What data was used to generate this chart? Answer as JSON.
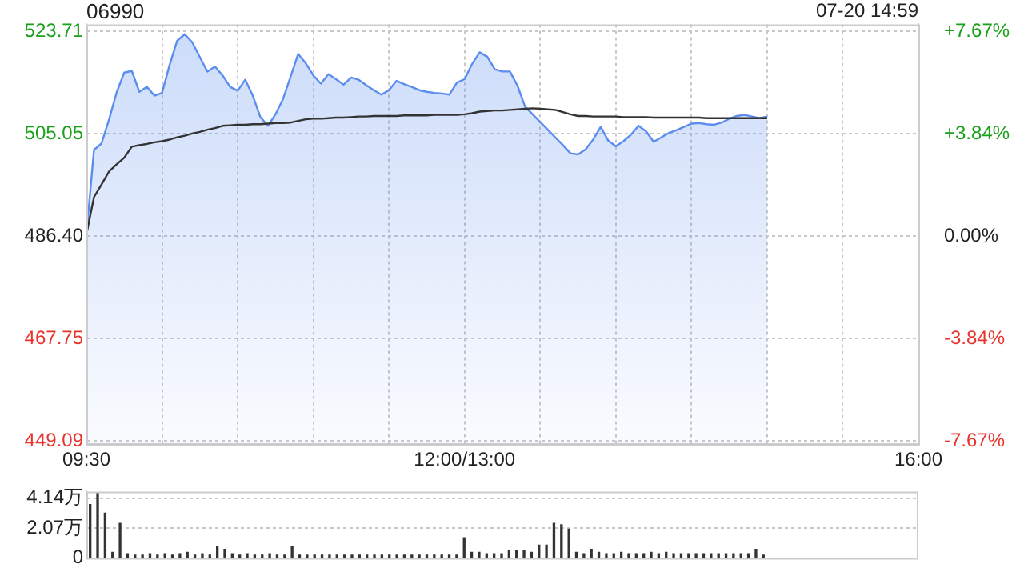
{
  "chart_data": [
    {
      "type": "line",
      "title": "06990",
      "annotations": [
        "07-20 14:59"
      ],
      "categories": [
        "09:30",
        null,
        null,
        null,
        null,
        null,
        null,
        null,
        null,
        null,
        null,
        null,
        null,
        null,
        null,
        null,
        null,
        null,
        null,
        null,
        null,
        null,
        null,
        null,
        null,
        null,
        null,
        null,
        null,
        null,
        null,
        null,
        null,
        null,
        null,
        null,
        null,
        null,
        null,
        null,
        null,
        null,
        null,
        null,
        null,
        null,
        null,
        null,
        null,
        null,
        "12:00/13:00",
        null,
        null,
        null,
        null,
        null,
        null,
        null,
        null,
        null,
        null,
        null,
        null,
        null,
        null,
        null,
        null,
        null,
        null,
        null,
        null,
        null,
        null,
        null,
        null,
        null,
        null,
        null,
        null,
        null,
        null,
        null,
        null,
        null,
        null,
        null,
        null,
        null,
        null,
        null,
        null,
        null,
        null,
        null,
        null,
        null,
        null,
        null,
        null,
        null,
        null,
        null,
        null,
        null,
        null,
        null,
        null,
        null,
        null,
        null,
        "16:00"
      ],
      "series": [
        {
          "type": "area",
          "color": "#5b8def",
          "values": [
            486.7,
            502.1,
            503.3,
            507.7,
            512.6,
            516.2,
            516.5,
            512.7,
            513.6,
            512.0,
            512.5,
            517.6,
            522.0,
            523.2,
            521.7,
            519.0,
            516.4,
            517.3,
            515.7,
            513.6,
            512.9,
            514.9,
            512.0,
            508.1,
            506.5,
            508.6,
            511.4,
            515.5,
            519.6,
            517.9,
            515.7,
            514.2,
            515.9,
            515.0,
            514.0,
            515.3,
            514.9,
            513.9,
            513.0,
            512.2,
            513.0,
            514.7,
            514.1,
            513.6,
            513.0,
            512.7,
            512.5,
            512.4,
            512.2,
            514.4,
            515.0,
            517.8,
            519.9,
            519.1,
            516.8,
            516.4,
            516.4,
            513.8,
            510.0,
            508.6,
            507.2,
            505.8,
            504.4,
            503.0,
            501.5,
            501.3,
            502.2,
            504.0,
            506.3,
            503.8,
            502.8,
            503.7,
            504.9,
            506.5,
            505.5,
            503.6,
            504.4,
            505.2,
            505.7,
            506.3,
            506.9,
            507.0,
            506.8,
            506.7,
            507.1,
            507.8,
            508.3,
            508.5,
            508.2,
            507.9,
            508.2,
            null,
            null,
            null,
            null,
            null,
            null,
            null,
            null,
            null,
            null,
            null,
            null,
            null,
            null,
            null,
            null,
            null,
            null,
            null,
            null
          ]
        },
        {
          "type": "line",
          "color": "#333333",
          "values": [
            486.7,
            493.5,
            495.8,
            498.2,
            499.5,
            500.7,
            502.7,
            503.0,
            503.2,
            503.5,
            503.7,
            504.0,
            504.4,
            504.7,
            505.1,
            505.4,
            505.8,
            506.1,
            506.5,
            506.6,
            506.7,
            506.7,
            506.8,
            506.8,
            506.9,
            507.0,
            507.0,
            507.1,
            507.4,
            507.7,
            507.8,
            507.8,
            507.9,
            508.0,
            508.0,
            508.1,
            508.2,
            508.2,
            508.3,
            508.3,
            508.3,
            508.3,
            508.4,
            508.4,
            508.4,
            508.4,
            508.5,
            508.5,
            508.5,
            508.5,
            508.6,
            508.8,
            509.1,
            509.2,
            509.3,
            509.3,
            509.4,
            509.5,
            509.6,
            509.7,
            509.6,
            509.5,
            509.4,
            509.0,
            508.6,
            508.3,
            508.3,
            508.2,
            508.2,
            508.2,
            508.2,
            508.1,
            508.1,
            508.1,
            508.1,
            508.0,
            508.0,
            508.0,
            508.0,
            508.0,
            508.0,
            508.0,
            507.9,
            507.9,
            507.9,
            507.9,
            507.9,
            507.9,
            507.9,
            507.9,
            507.9,
            null,
            null,
            null,
            null,
            null,
            null,
            null,
            null,
            null,
            null,
            null,
            null,
            null,
            null,
            null,
            null,
            null,
            null,
            null,
            null
          ]
        }
      ],
      "ylim": [
        448.5,
        525
      ],
      "yticks": [
        {
          "value": 449.09,
          "label": "449.09"
        },
        467.75,
        {
          "value": 486.4,
          "label": "486.40"
        },
        505.05,
        523.71
      ],
      "y2lim": [
        -7.79,
        7.94
      ],
      "y2ticks": [
        {
          "value": -7.67,
          "label": "-7.67%"
        },
        {
          "value": -3.84,
          "label": "-3.84%"
        },
        {
          "value": 0,
          "label": "0.00%"
        },
        {
          "value": 3.84,
          "label": "+3.84%"
        },
        {
          "value": 7.67,
          "label": "+7.67%"
        }
      ],
      "grid": true,
      "marker": "none"
    },
    {
      "type": "bar",
      "color": "#333333",
      "categories": [
        null,
        null,
        null,
        null,
        null,
        null,
        null,
        null,
        null,
        null,
        null,
        null,
        null,
        null,
        null,
        null,
        null,
        null,
        null,
        null,
        null,
        null,
        null,
        null,
        null,
        null,
        null,
        null,
        null,
        null,
        null,
        null,
        null,
        null,
        null,
        null,
        null,
        null,
        null,
        null,
        null,
        null,
        null,
        null,
        null,
        null,
        null,
        null,
        null,
        null,
        null,
        null,
        null,
        null,
        null,
        null,
        null,
        null,
        null,
        null,
        null,
        null,
        null,
        null,
        null,
        null,
        null,
        null,
        null,
        null,
        null,
        null,
        null,
        null,
        null,
        null,
        null,
        null,
        null,
        null,
        null,
        null,
        null,
        null,
        null,
        null,
        null,
        null,
        null,
        null,
        null,
        null,
        null,
        null,
        null,
        null,
        null,
        null,
        null,
        null,
        null,
        null,
        null,
        null,
        null,
        null,
        null,
        null,
        null,
        null,
        null
      ],
      "values": [
        3.7,
        4.5,
        3.1,
        0.4,
        2.4,
        0.3,
        0.2,
        0.2,
        0.3,
        0.2,
        0.3,
        0.2,
        0.3,
        0.4,
        0.2,
        0.3,
        0.2,
        0.8,
        0.6,
        0.3,
        0.2,
        0.3,
        0.2,
        0.2,
        0.3,
        0.2,
        0.2,
        0.8,
        0.2,
        0.2,
        0.2,
        0.2,
        0.2,
        0.2,
        0.2,
        0.2,
        0.2,
        0.2,
        0.2,
        0.2,
        0.2,
        0.2,
        0.2,
        0.2,
        0.2,
        0.2,
        0.2,
        0.2,
        0.2,
        0.2,
        1.4,
        0.4,
        0.4,
        0.3,
        0.3,
        0.3,
        0.5,
        0.5,
        0.5,
        0.4,
        0.9,
        0.9,
        2.4,
        2.3,
        2.0,
        0.4,
        0.3,
        0.6,
        0.4,
        0.3,
        0.3,
        0.4,
        0.3,
        0.3,
        0.3,
        0.4,
        0.3,
        0.4,
        0.3,
        0.3,
        0.3,
        0.3,
        0.3,
        0.3,
        0.3,
        0.3,
        0.3,
        0.3,
        0.3,
        0.6,
        0.2,
        null,
        null,
        null,
        null,
        null,
        null,
        null,
        null,
        null,
        null,
        null,
        null,
        null,
        null,
        null,
        null,
        null,
        null,
        null,
        null
      ],
      "ylim": [
        0,
        4.6
      ],
      "yticks": [
        0,
        {
          "value": 2.07,
          "label": "2.07万"
        },
        {
          "value": 4.14,
          "label": "4.14万"
        }
      ],
      "grid": "y",
      "tick_labels": "y"
    }
  ]
}
